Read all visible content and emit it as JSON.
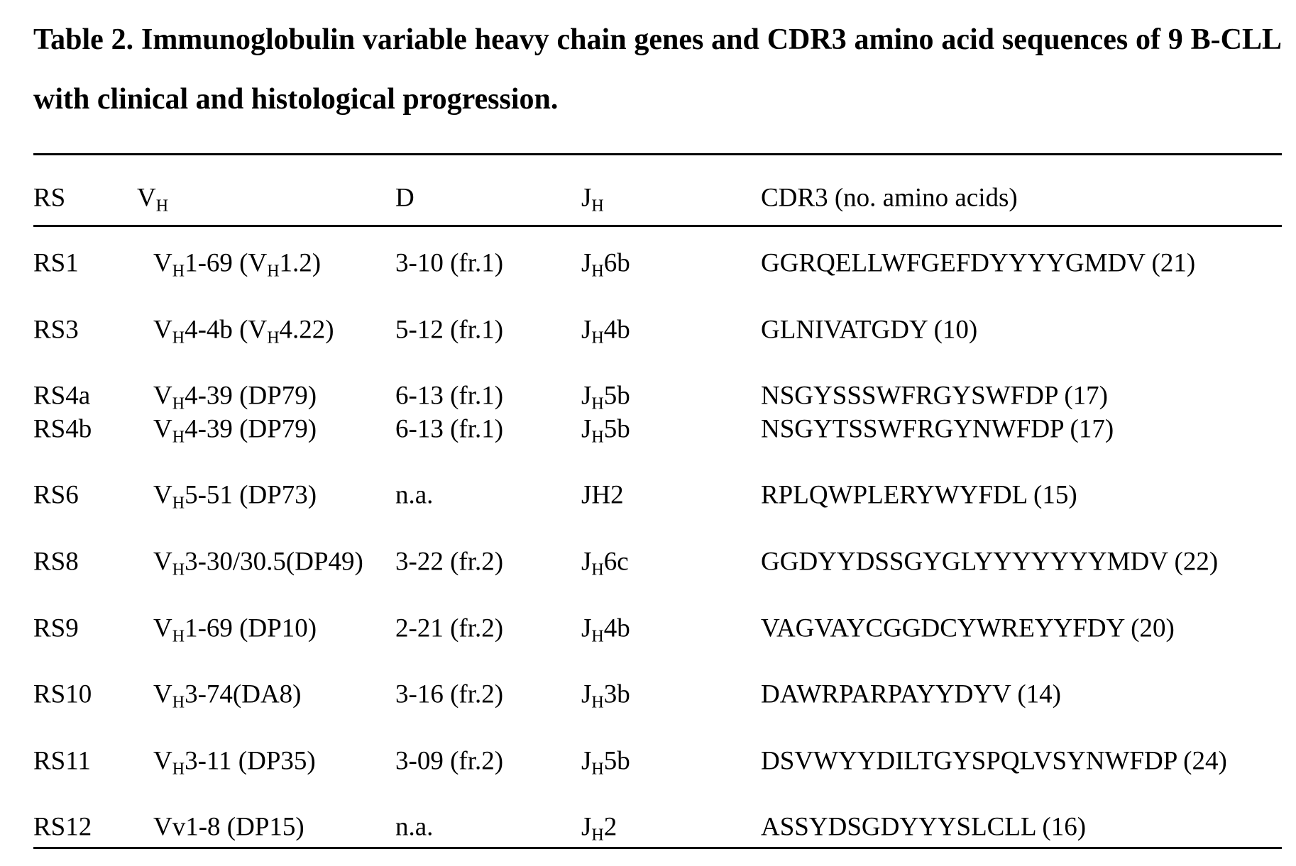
{
  "title": "Table 2. Immunoglobulin variable heavy chain genes and CDR3 amino acid sequences of 9 B-CLL with clinical and histological progression.",
  "table": {
    "header": [
      [
        "RS"
      ],
      [
        "V",
        "H"
      ],
      [
        "D"
      ],
      [
        "J",
        "H"
      ],
      [
        "CDR3 (no. amino acids)"
      ]
    ],
    "rows": [
      [
        [
          "RS1"
        ],
        [
          "V",
          "H",
          "1-69 (V",
          "H",
          "1.2)"
        ],
        [
          "3-10 (fr.1)"
        ],
        [
          "J",
          "H",
          "6b"
        ],
        [
          "GGRQELLWFGEFDYYYYGMDV (21)"
        ]
      ],
      [
        [
          "RS3"
        ],
        [
          "V",
          "H",
          "4-4b (V",
          "H",
          "4.22)"
        ],
        [
          "5-12 (fr.1)"
        ],
        [
          "J",
          "H",
          "4b"
        ],
        [
          "GLNIVATGDY (10)"
        ]
      ],
      [
        [
          "RS4a"
        ],
        [
          "V",
          "H",
          "4-39 (DP79)"
        ],
        [
          "6-13 (fr.1)"
        ],
        [
          "J",
          "H",
          "5b"
        ],
        [
          "NSGYSSSWFRGYSWFDP (17)"
        ]
      ],
      [
        [
          "RS4b"
        ],
        [
          "V",
          "H",
          "4-39 (DP79)"
        ],
        [
          "6-13 (fr.1)"
        ],
        [
          "J",
          "H",
          "5b"
        ],
        [
          "NSGYTSSWFRGYNWFDP (17)"
        ]
      ],
      [
        [
          "RS6"
        ],
        [
          "V",
          "H",
          "5-51 (DP73)"
        ],
        [
          "n.a."
        ],
        [
          "JH2"
        ],
        [
          "RPLQWPLERYWYFDL (15)"
        ]
      ],
      [
        [
          "RS8"
        ],
        [
          "V",
          "H",
          "3-30/30.5(DP49)"
        ],
        [
          "3-22 (fr.2)"
        ],
        [
          "J",
          "H",
          "6c"
        ],
        [
          "GGDYYDSSGYGLYYYYYYYMDV (22)"
        ]
      ],
      [
        [
          "RS9"
        ],
        [
          "V",
          "H",
          "1-69 (DP10)"
        ],
        [
          "2-21 (fr.2)"
        ],
        [
          "J",
          "H",
          "4b"
        ],
        [
          "VAGVAYCGGDCYWREYYFDY (20)"
        ]
      ],
      [
        [
          "RS10"
        ],
        [
          "V",
          "H",
          "3-74(DA8)"
        ],
        [
          "3-16 (fr.2)"
        ],
        [
          "J",
          "H",
          "3b"
        ],
        [
          "DAWRPARPAYYDYV (14)"
        ]
      ],
      [
        [
          "RS11"
        ],
        [
          "V",
          "H",
          "3-11 (DP35)"
        ],
        [
          "3-09 (fr.2)"
        ],
        [
          "J",
          "H",
          "5b"
        ],
        [
          "DSVWYYDILTGYSPQLVSYNWFDP (24)"
        ]
      ],
      [
        [
          "RS12"
        ],
        [
          "Vv1-8 (DP15)"
        ],
        [
          "n.a."
        ],
        [
          "J",
          "H",
          "2"
        ],
        [
          "ASSYDSGDYYYSLCLL (16)"
        ]
      ]
    ]
  }
}
